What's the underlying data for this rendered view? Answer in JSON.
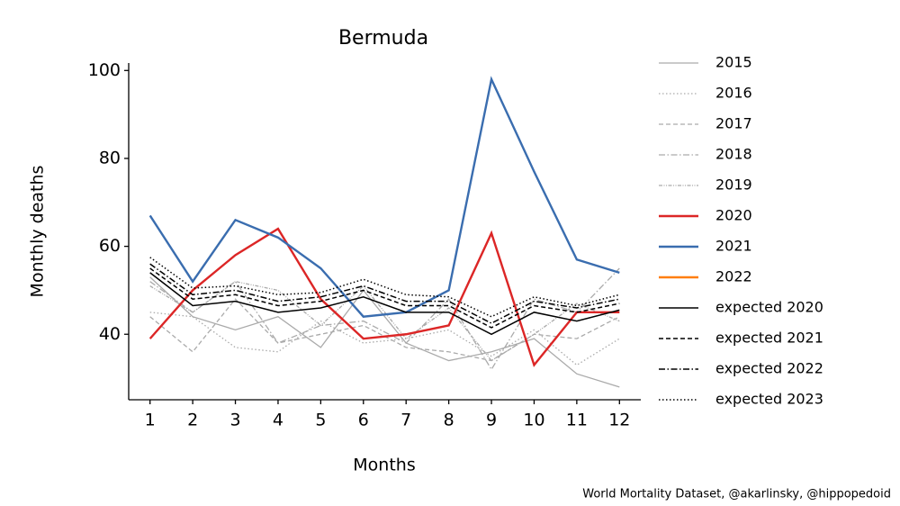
{
  "chart_data": {
    "type": "line",
    "title": "Bermuda",
    "xlabel": "Months",
    "ylabel": "Monthly deaths",
    "annotation": "World Mortality Dataset, @akarlinsky, @hippopedoid",
    "x": [
      1,
      2,
      3,
      4,
      5,
      6,
      7,
      8,
      9,
      10,
      11,
      12
    ],
    "xlim": [
      0.5,
      12.5
    ],
    "xticks": [
      1,
      2,
      3,
      4,
      5,
      6,
      7,
      8,
      9,
      10,
      11,
      12
    ],
    "ylim": [
      25.1,
      101.7
    ],
    "yticks": [
      40,
      60,
      80,
      100
    ],
    "legend": "outside right",
    "series": [
      {
        "name": "2015",
        "color": "#aaaaaa",
        "linestyle": "solid",
        "width": 1.3,
        "values": [
          53,
          44,
          41,
          44,
          37,
          50,
          38,
          34,
          36,
          39,
          31,
          28
        ]
      },
      {
        "name": "2016",
        "color": "#aaaaaa",
        "linestyle": "dotted",
        "width": 1.3,
        "values": [
          45,
          44,
          37,
          36,
          43,
          38,
          39,
          41,
          35,
          41,
          33,
          39
        ]
      },
      {
        "name": "2017",
        "color": "#aaaaaa",
        "linestyle": "dashed",
        "width": 1.3,
        "values": [
          44,
          36,
          48,
          38,
          40,
          42,
          37,
          36,
          34,
          40,
          39,
          44
        ]
      },
      {
        "name": "2018",
        "color": "#aaaaaa",
        "linestyle": "dashdot",
        "width": 1.3,
        "values": [
          52,
          45,
          52,
          38,
          42,
          43,
          38,
          48,
          32,
          48,
          45,
          55
        ]
      },
      {
        "name": "2019",
        "color": "#aaaaaa",
        "linestyle": "dashdotdot",
        "width": 1.3,
        "values": [
          51,
          45,
          52,
          50,
          42,
          51,
          39,
          46,
          34,
          40,
          47,
          43
        ]
      },
      {
        "name": "2020",
        "color": "#dc2626",
        "linestyle": "solid",
        "width": 2.4,
        "values": [
          39,
          50,
          58,
          64,
          48,
          39,
          40,
          42,
          63,
          33,
          45,
          45
        ]
      },
      {
        "name": "2021",
        "color": "#3a6daf",
        "linestyle": "solid",
        "width": 2.4,
        "values": [
          67,
          52,
          66,
          62,
          55,
          44,
          45,
          50,
          98,
          77,
          57,
          54
        ]
      },
      {
        "name": "2022",
        "color": "#ff7f0e",
        "linestyle": "solid",
        "width": 2.4,
        "values": [
          null,
          null,
          null,
          null,
          null,
          null,
          null,
          null,
          null,
          null,
          null,
          null
        ]
      },
      {
        "name": "expected 2020",
        "color": "#000000",
        "linestyle": "solid",
        "width": 1.5,
        "values": [
          54,
          46.5,
          47.5,
          45,
          46,
          48.5,
          45,
          45,
          40,
          45,
          43,
          45.5
        ]
      },
      {
        "name": "expected 2021",
        "color": "#000000",
        "linestyle": "dashed",
        "width": 1.5,
        "values": [
          55,
          48,
          49,
          46.5,
          47.5,
          50,
          46.5,
          46.5,
          41.5,
          46.5,
          45,
          47
        ]
      },
      {
        "name": "expected 2022",
        "color": "#000000",
        "linestyle": "dashdot",
        "width": 1.5,
        "values": [
          56,
          49,
          50,
          47.5,
          48.5,
          51,
          47.5,
          47.5,
          42.5,
          47.5,
          46,
          48
        ]
      },
      {
        "name": "expected 2023",
        "color": "#000000",
        "linestyle": "dotted",
        "width": 1.5,
        "values": [
          57.5,
          50.5,
          51,
          49,
          49.5,
          52.5,
          49,
          48.5,
          44,
          48.5,
          46.5,
          49
        ]
      }
    ]
  }
}
